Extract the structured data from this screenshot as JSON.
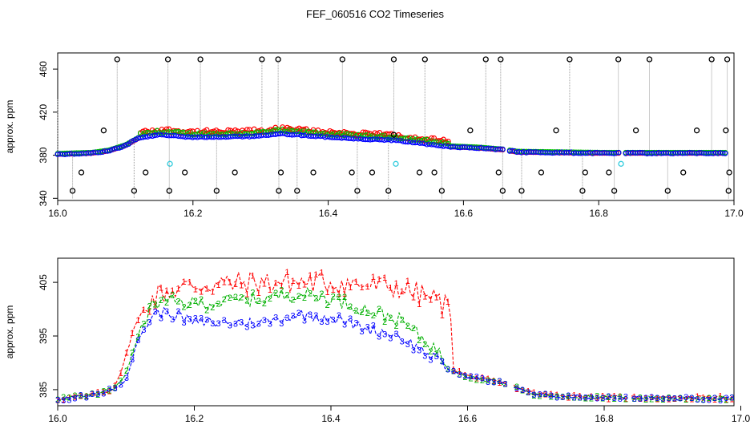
{
  "title": "FEF_060516  CO2 Timeseries",
  "colors": {
    "ch1": "#ff0000",
    "ch2": "#00c000",
    "ch3": "#0000ff",
    "outlier": "#000000",
    "flag": "#33ccdd",
    "drop": "#9a9a9a"
  },
  "chart_data": [
    {
      "type": "scatter",
      "panel": "top",
      "ylabel": "approx. ppm",
      "xlim": [
        16.0,
        17.0
      ],
      "ylim": [
        338,
        475
      ],
      "xticks": [
        16.0,
        16.2,
        16.4,
        16.6,
        16.8,
        17.0
      ],
      "xtick_labels": [
        "16.0",
        "16.2",
        "16.4",
        "16.6",
        "16.8",
        "17.0"
      ],
      "yticks": [
        340,
        380,
        420,
        460
      ],
      "ytick_labels": [
        "340",
        "380",
        "420",
        "460"
      ],
      "baseline_points": [
        [
          16.0,
          382
        ],
        [
          16.05,
          383
        ],
        [
          16.075,
          385
        ],
        [
          16.1,
          390
        ],
        [
          16.12,
          397
        ],
        [
          16.15,
          400
        ],
        [
          16.2,
          398
        ],
        [
          16.25,
          398
        ],
        [
          16.3,
          399
        ],
        [
          16.33,
          401
        ],
        [
          16.4,
          398
        ],
        [
          16.45,
          396
        ],
        [
          16.5,
          395
        ],
        [
          16.55,
          391
        ],
        [
          16.58,
          389
        ],
        [
          16.62,
          388
        ],
        [
          16.66,
          386
        ],
        [
          16.68,
          384
        ],
        [
          16.8,
          383
        ],
        [
          17.0,
          383
        ]
      ],
      "gaps": [
        [
          16.6592,
          16.6658
        ],
        [
          16.8325,
          16.8375
        ]
      ],
      "upper_spikes": [
        16.088,
        16.163,
        16.211,
        16.302,
        16.326,
        16.421,
        16.497,
        16.543,
        16.633,
        16.655,
        16.757,
        16.829,
        16.875,
        16.967,
        16.99
      ],
      "lower_spikes": [
        16.022,
        16.113,
        16.165,
        16.235,
        16.327,
        16.354,
        16.443,
        16.489,
        16.568,
        16.658,
        16.686,
        16.776,
        16.823,
        16.902,
        16.992
      ],
      "mid_outliers": [
        [
          16.035,
          364
        ],
        [
          16.068,
          403
        ],
        [
          16.13,
          364
        ],
        [
          16.188,
          364
        ],
        [
          16.262,
          364
        ],
        [
          16.33,
          364
        ],
        [
          16.378,
          364
        ],
        [
          16.435,
          364
        ],
        [
          16.465,
          364
        ],
        [
          16.497,
          399
        ],
        [
          16.535,
          364
        ],
        [
          16.557,
          364
        ],
        [
          16.61,
          403
        ],
        [
          16.652,
          364
        ],
        [
          16.715,
          364
        ],
        [
          16.737,
          403
        ],
        [
          16.78,
          364
        ],
        [
          16.815,
          364
        ],
        [
          16.855,
          403
        ],
        [
          16.925,
          364
        ],
        [
          16.945,
          403
        ],
        [
          16.988,
          403
        ],
        [
          16.993,
          364
        ]
      ],
      "flagged_points": [
        [
          16.166,
          372
        ],
        [
          16.5,
          372
        ],
        [
          16.833,
          372
        ]
      ]
    },
    {
      "type": "line",
      "panel": "bottom",
      "ylabel": "approx. ppm",
      "xlim": [
        16.0,
        16.99
      ],
      "ylim": [
        382,
        409.5
      ],
      "xticks": [
        16.0,
        16.2,
        16.4,
        16.6,
        16.8,
        17.0
      ],
      "xtick_labels": [
        "16.0",
        "16.2",
        "16.4",
        "16.6",
        "16.8",
        "17.0"
      ],
      "yticks": [
        385,
        395,
        405
      ],
      "ytick_labels": [
        "385",
        "395",
        "405"
      ],
      "gaps": [
        [
          16.6592,
          16.6658
        ],
        [
          16.8325,
          16.8375
        ]
      ],
      "series": [
        {
          "name": "1",
          "color": "#ff0000",
          "anchors": [
            [
              16.0,
              383.3
            ],
            [
              16.05,
              384
            ],
            [
              16.08,
              385
            ],
            [
              16.095,
              389
            ],
            [
              16.11,
              396
            ],
            [
              16.13,
              401
            ],
            [
              16.15,
              403
            ],
            [
              16.2,
              404.5
            ],
            [
              16.3,
              405
            ],
            [
              16.4,
              405
            ],
            [
              16.5,
              404
            ],
            [
              16.55,
              402
            ],
            [
              16.575,
              400
            ],
            [
              16.578,
              389
            ],
            [
              16.6,
              387.5
            ],
            [
              16.66,
              386
            ],
            [
              16.7,
              384.2
            ],
            [
              16.8,
              383.6
            ],
            [
              16.99,
              383.5
            ]
          ],
          "jitter": 2.2
        },
        {
          "name": "2",
          "color": "#00b000",
          "anchors": [
            [
              16.0,
              383.2
            ],
            [
              16.05,
              384
            ],
            [
              16.08,
              385
            ],
            [
              16.1,
              388
            ],
            [
              16.12,
              396
            ],
            [
              16.14,
              401
            ],
            [
              16.16,
              401.5
            ],
            [
              16.2,
              401
            ],
            [
              16.3,
              402
            ],
            [
              16.35,
              403
            ],
            [
              16.4,
              402
            ],
            [
              16.45,
              400
            ],
            [
              16.5,
              398
            ],
            [
              16.55,
              393
            ],
            [
              16.575,
              389
            ],
            [
              16.6,
              387.5
            ],
            [
              16.66,
              386
            ],
            [
              16.7,
              384
            ],
            [
              16.8,
              383.5
            ],
            [
              16.99,
              383.4
            ]
          ],
          "jitter": 1.3
        },
        {
          "name": "3",
          "color": "#0000ff",
          "anchors": [
            [
              16.0,
              383.1
            ],
            [
              16.05,
              384
            ],
            [
              16.08,
              385
            ],
            [
              16.1,
              387
            ],
            [
              16.12,
              395
            ],
            [
              16.14,
              399
            ],
            [
              16.16,
              399.5
            ],
            [
              16.2,
              397.5
            ],
            [
              16.3,
              397.5
            ],
            [
              16.35,
              399
            ],
            [
              16.4,
              398.5
            ],
            [
              16.45,
              396.5
            ],
            [
              16.5,
              395
            ],
            [
              16.55,
              391
            ],
            [
              16.575,
              388.5
            ],
            [
              16.6,
              387.5
            ],
            [
              16.66,
              386
            ],
            [
              16.7,
              384
            ],
            [
              16.8,
              383.5
            ],
            [
              16.99,
              383.3
            ]
          ],
          "jitter": 1.0
        }
      ]
    }
  ]
}
